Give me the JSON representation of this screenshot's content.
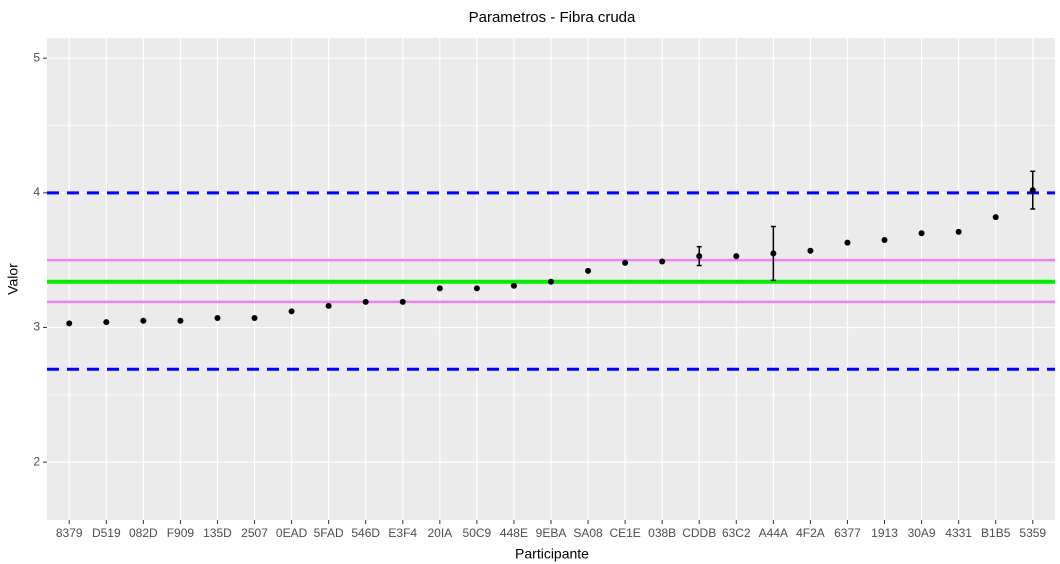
{
  "chart_data": {
    "type": "scatter",
    "title": "Parametros - Fibra cruda",
    "x_label": "Participante",
    "y_label": "Valor",
    "categories": [
      "8379",
      "D519",
      "082D",
      "F909",
      "135D",
      "2507",
      "0EAD",
      "5FAD",
      "546D",
      "E3F4",
      "20IA",
      "50C9",
      "448E",
      "9EBA",
      "SA08",
      "CE1E",
      "038B",
      "CDDB",
      "63C2",
      "A44A",
      "4F2A",
      "6377",
      "1913",
      "30A9",
      "4331",
      "B1B5",
      "5359"
    ],
    "series": [
      {
        "color": "#000000",
        "values": [
          3.03,
          3.04,
          3.05,
          3.05,
          3.07,
          3.07,
          3.12,
          3.16,
          3.19,
          3.19,
          3.29,
          3.29,
          3.31,
          3.34,
          3.42,
          3.48,
          3.49,
          3.53,
          3.53,
          3.55,
          3.57,
          3.63,
          3.65,
          3.7,
          3.71,
          3.82,
          4.02
        ],
        "errors": [
          null,
          null,
          null,
          null,
          null,
          null,
          null,
          null,
          null,
          null,
          null,
          null,
          null,
          null,
          null,
          null,
          null,
          0.07,
          null,
          0.2,
          null,
          null,
          null,
          null,
          null,
          null,
          0.14
        ]
      }
    ],
    "hlines": [
      {
        "value": 4.0,
        "color": "#0000ff",
        "style": "dashed"
      },
      {
        "value": 2.69,
        "color": "#0000ff",
        "style": "dashed"
      },
      {
        "value": 3.5,
        "color": "#ee82ee",
        "style": "solid"
      },
      {
        "value": 3.19,
        "color": "#ee82ee",
        "style": "solid"
      },
      {
        "value": 3.34,
        "color": "#00ee00",
        "style": "solid"
      }
    ],
    "ylim": [
      1.57,
      5.15
    ],
    "yticks": [
      2,
      3,
      4,
      5
    ],
    "yminor": [
      2.5,
      3.5,
      4.5
    ],
    "grid": true
  }
}
